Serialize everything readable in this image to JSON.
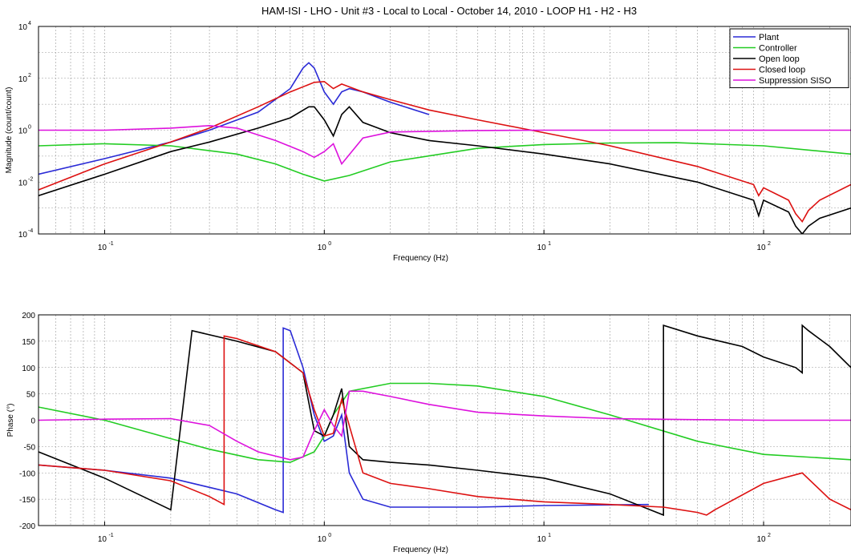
{
  "window": {
    "title": "HAM-ISI - LHO - Unit #3 - Local to Local - October 14, 2010 - LOOP H1 - H2 - H3"
  },
  "chart_data": [
    {
      "type": "line",
      "x_scale": "log",
      "y_scale": "log",
      "xlabel": "Frequency (Hz)",
      "ylabel": "Magnitude (count/count)",
      "xlim": [
        0.05,
        250
      ],
      "ylim": [
        0.0001,
        10000
      ],
      "grid": true,
      "legend_position": "top-right",
      "x_ticks": [
        {
          "value": 0.1,
          "base": "10",
          "exp": "-1"
        },
        {
          "value": 1,
          "base": "10",
          "exp": "0"
        },
        {
          "value": 10,
          "base": "10",
          "exp": "1"
        },
        {
          "value": 100,
          "base": "10",
          "exp": "2"
        }
      ],
      "y_ticks": [
        {
          "value": 0.0001,
          "base": "10",
          "exp": "-4"
        },
        {
          "value": 0.01,
          "base": "10",
          "exp": "-2"
        },
        {
          "value": 1,
          "base": "10",
          "exp": "0"
        },
        {
          "value": 100,
          "base": "10",
          "exp": "2"
        },
        {
          "value": 10000,
          "base": "10",
          "exp": "4"
        }
      ],
      "series": [
        {
          "name": "Plant",
          "color": "#2a2ad6",
          "x": [
            0.05,
            0.1,
            0.2,
            0.3,
            0.5,
            0.7,
            0.8,
            0.85,
            0.9,
            1.0,
            1.1,
            1.2,
            1.3,
            1.5,
            2,
            3
          ],
          "y": [
            0.02,
            0.08,
            0.35,
            1.0,
            5,
            40,
            250,
            400,
            250,
            30,
            10,
            30,
            40,
            30,
            12,
            4
          ]
        },
        {
          "name": "Controller",
          "color": "#22cc22",
          "x": [
            0.05,
            0.1,
            0.2,
            0.4,
            0.6,
            0.8,
            1.0,
            1.3,
            2,
            5,
            10,
            20,
            40,
            100,
            250
          ],
          "y": [
            0.25,
            0.3,
            0.25,
            0.12,
            0.05,
            0.02,
            0.011,
            0.018,
            0.06,
            0.2,
            0.28,
            0.32,
            0.33,
            0.25,
            0.12
          ]
        },
        {
          "name": "Open loop",
          "color": "#000000",
          "x": [
            0.05,
            0.1,
            0.2,
            0.3,
            0.5,
            0.7,
            0.85,
            0.9,
            1.0,
            1.1,
            1.2,
            1.3,
            1.5,
            2,
            3,
            5,
            10,
            20,
            50,
            90,
            95,
            100,
            130,
            140,
            150,
            160,
            180,
            250
          ],
          "y": [
            0.003,
            0.02,
            0.15,
            0.35,
            1.2,
            3,
            8,
            8,
            2.5,
            0.6,
            4,
            8,
            2,
            0.8,
            0.4,
            0.25,
            0.12,
            0.05,
            0.01,
            0.002,
            0.0005,
            0.002,
            0.0007,
            0.0002,
            0.0001,
            0.0002,
            0.0004,
            0.001
          ]
        },
        {
          "name": "Closed loop",
          "color": "#dd1111",
          "x": [
            0.05,
            0.1,
            0.2,
            0.3,
            0.5,
            0.7,
            0.9,
            1.0,
            1.1,
            1.2,
            1.5,
            2,
            3,
            5,
            10,
            20,
            50,
            90,
            95,
            100,
            130,
            140,
            150,
            160,
            180,
            250
          ],
          "y": [
            0.005,
            0.05,
            0.35,
            1.2,
            8,
            30,
            70,
            75,
            40,
            60,
            30,
            15,
            6,
            2.5,
            0.8,
            0.25,
            0.04,
            0.008,
            0.003,
            0.006,
            0.002,
            0.0006,
            0.0003,
            0.0008,
            0.002,
            0.008
          ]
        },
        {
          "name": "Suppression SISO",
          "color": "#dd11dd",
          "x": [
            0.05,
            0.1,
            0.2,
            0.3,
            0.4,
            0.6,
            0.8,
            0.9,
            1.0,
            1.1,
            1.2,
            1.5,
            2,
            5,
            10,
            100,
            250
          ],
          "y": [
            1,
            1,
            1.2,
            1.5,
            1.2,
            0.4,
            0.15,
            0.09,
            0.15,
            0.3,
            0.05,
            0.5,
            0.85,
            0.97,
            1,
            1,
            1
          ]
        }
      ]
    },
    {
      "type": "line",
      "x_scale": "log",
      "xlabel": "Frequency (Hz)",
      "ylabel": "Phase (°)",
      "xlim": [
        0.05,
        250
      ],
      "ylim": [
        -200,
        200
      ],
      "grid": true,
      "y_ticks": [
        "200",
        "150",
        "100",
        "50",
        "0",
        "-50",
        "-100",
        "-150",
        "-200"
      ],
      "x_ticks": [
        {
          "value": 0.1,
          "base": "10",
          "exp": "-1"
        },
        {
          "value": 1,
          "base": "10",
          "exp": "0"
        },
        {
          "value": 10,
          "base": "10",
          "exp": "1"
        },
        {
          "value": 100,
          "base": "10",
          "exp": "2"
        }
      ],
      "series": [
        {
          "name": "Plant",
          "color": "#2a2ad6",
          "x": [
            0.05,
            0.1,
            0.2,
            0.4,
            0.6,
            0.65,
            0.65,
            0.7,
            0.8,
            0.9,
            1.0,
            1.1,
            1.2,
            1.3,
            1.5,
            2,
            3,
            5,
            10,
            30
          ],
          "y": [
            -85,
            -95,
            -110,
            -140,
            -170,
            -175,
            175,
            170,
            100,
            10,
            -40,
            -30,
            10,
            -100,
            -150,
            -165,
            -165,
            -165,
            -162,
            -160
          ]
        },
        {
          "name": "Controller",
          "color": "#22cc22",
          "x": [
            0.05,
            0.1,
            0.2,
            0.3,
            0.5,
            0.7,
            0.9,
            1.0,
            1.1,
            1.3,
            2,
            3,
            5,
            10,
            20,
            50,
            100,
            250
          ],
          "y": [
            25,
            0,
            -35,
            -55,
            -75,
            -80,
            -60,
            -30,
            10,
            55,
            70,
            70,
            65,
            45,
            10,
            -40,
            -65,
            -75
          ]
        },
        {
          "name": "Open loop",
          "color": "#000000",
          "x": [
            0.05,
            0.1,
            0.2,
            0.2,
            0.25,
            0.4,
            0.6,
            0.8,
            0.9,
            1.0,
            1.1,
            1.2,
            1.3,
            1.5,
            2,
            3,
            5,
            10,
            20,
            35,
            35,
            50,
            80,
            100,
            140,
            150,
            150,
            160,
            200,
            250
          ],
          "y": [
            -60,
            -110,
            -170,
            -170,
            170,
            150,
            130,
            90,
            -20,
            -30,
            10,
            60,
            -50,
            -75,
            -80,
            -85,
            -95,
            -110,
            -140,
            -180,
            180,
            160,
            140,
            120,
            100,
            90,
            180,
            170,
            140,
            100
          ]
        },
        {
          "name": "Closed loop",
          "color": "#dd1111",
          "x": [
            0.05,
            0.1,
            0.2,
            0.3,
            0.35,
            0.35,
            0.4,
            0.6,
            0.8,
            0.9,
            1.0,
            1.1,
            1.2,
            1.5,
            2,
            3,
            5,
            10,
            20,
            35,
            50,
            55,
            60,
            100,
            150,
            200,
            250
          ],
          "y": [
            -85,
            -95,
            -115,
            -145,
            -160,
            160,
            155,
            130,
            90,
            20,
            -30,
            -25,
            40,
            -100,
            -120,
            -130,
            -145,
            -155,
            -160,
            -165,
            -175,
            -180,
            -170,
            -120,
            -100,
            -150,
            -170
          ]
        },
        {
          "name": "Suppression SISO",
          "color": "#dd11dd",
          "x": [
            0.05,
            0.1,
            0.2,
            0.3,
            0.4,
            0.5,
            0.7,
            0.8,
            0.9,
            1.0,
            1.1,
            1.2,
            1.3,
            1.5,
            2,
            3,
            5,
            10,
            20,
            50,
            100,
            250
          ],
          "y": [
            0,
            2,
            3,
            -10,
            -40,
            -60,
            -75,
            -70,
            -20,
            20,
            -10,
            -30,
            55,
            55,
            45,
            30,
            15,
            8,
            3,
            1,
            0,
            0
          ]
        }
      ]
    }
  ]
}
